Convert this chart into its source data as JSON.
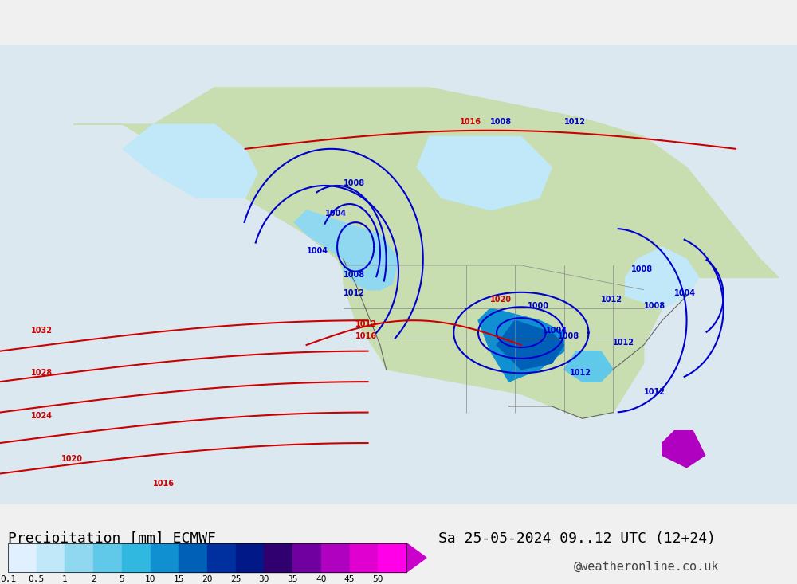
{
  "title_left": "Precipitation [mm] ECMWF",
  "title_right": "Sa 25-05-2024 09..12 UTC (12+24)",
  "credit": "@weatheronline.co.uk",
  "colorbar_values": [
    0.1,
    0.5,
    1,
    2,
    5,
    10,
    15,
    20,
    25,
    30,
    35,
    40,
    45,
    50
  ],
  "colorbar_colors": [
    "#e0f0ff",
    "#c0e8f8",
    "#90d8f0",
    "#60c8e8",
    "#30b8e0",
    "#1090d0",
    "#0060b8",
    "#0030a0",
    "#001888",
    "#300070",
    "#7000a0",
    "#b000c0",
    "#e000d0",
    "#ff00e8"
  ],
  "bg_color": "#e8e8e8",
  "map_bg": "#f0f0f0",
  "font_size_title": 13,
  "font_size_credit": 11,
  "font_size_labels": 11,
  "font_size_colorbar_labels": 10
}
